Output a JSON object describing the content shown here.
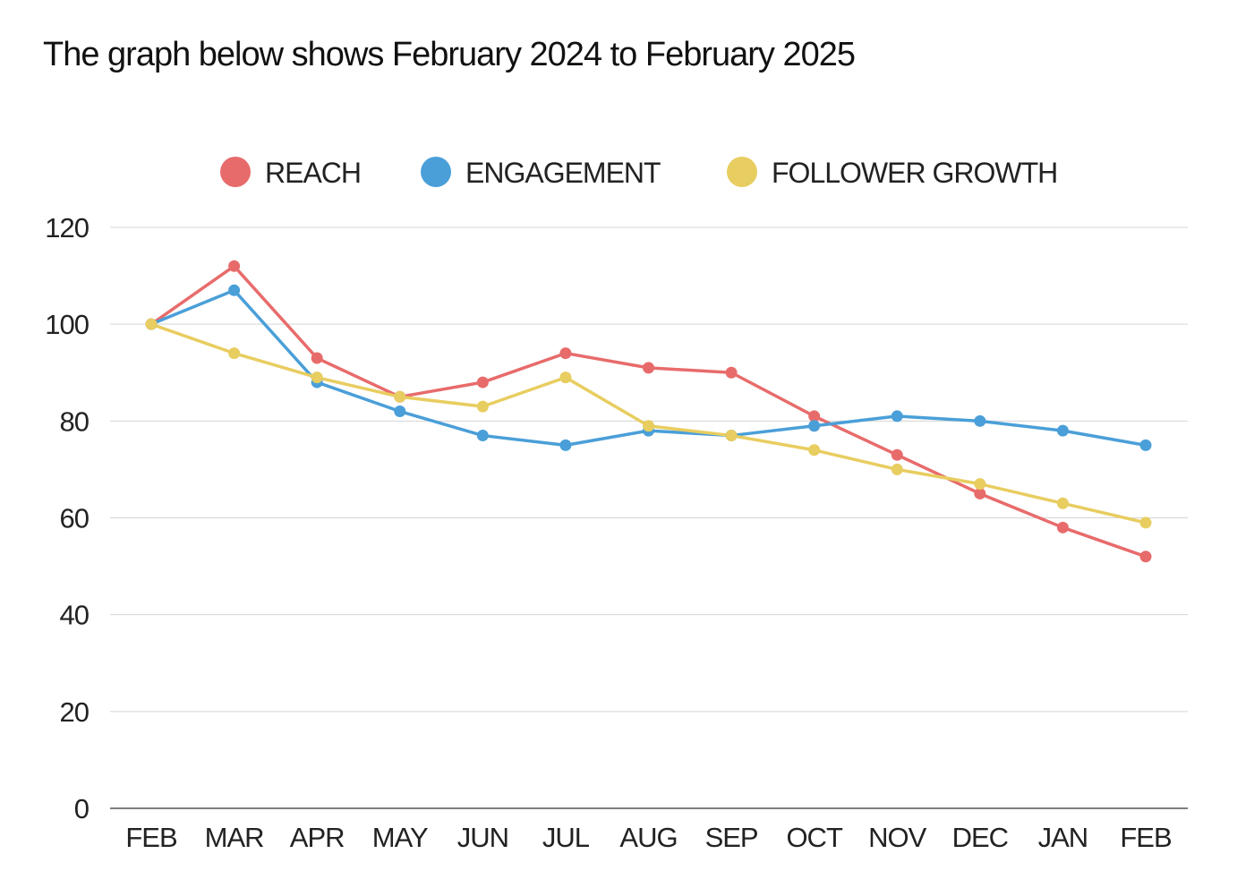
{
  "chart_data": {
    "type": "line",
    "title": "The graph below shows February 2024 to February 2025",
    "categories": [
      "FEB",
      "MAR",
      "APR",
      "MAY",
      "JUN",
      "JUL",
      "AUG",
      "SEP",
      "OCT",
      "NOV",
      "DEC",
      "JAN",
      "FEB"
    ],
    "ylim": [
      0,
      120
    ],
    "yticks": [
      0,
      20,
      40,
      60,
      80,
      100,
      120
    ],
    "grid": true,
    "legend": "top",
    "series": [
      {
        "name": "REACH",
        "color": "#e86b6b",
        "values": [
          100,
          112,
          93,
          85,
          88,
          94,
          91,
          90,
          81,
          73,
          65,
          58,
          52
        ]
      },
      {
        "name": "ENGAGEMENT",
        "color": "#4a9fd8",
        "values": [
          100,
          107,
          88,
          82,
          77,
          75,
          78,
          77,
          79,
          81,
          80,
          78,
          75
        ]
      },
      {
        "name": "FOLLOWER GROWTH",
        "color": "#e8cd60",
        "values": [
          100,
          94,
          89,
          85,
          83,
          89,
          79,
          77,
          74,
          70,
          67,
          63,
          59
        ]
      }
    ]
  }
}
